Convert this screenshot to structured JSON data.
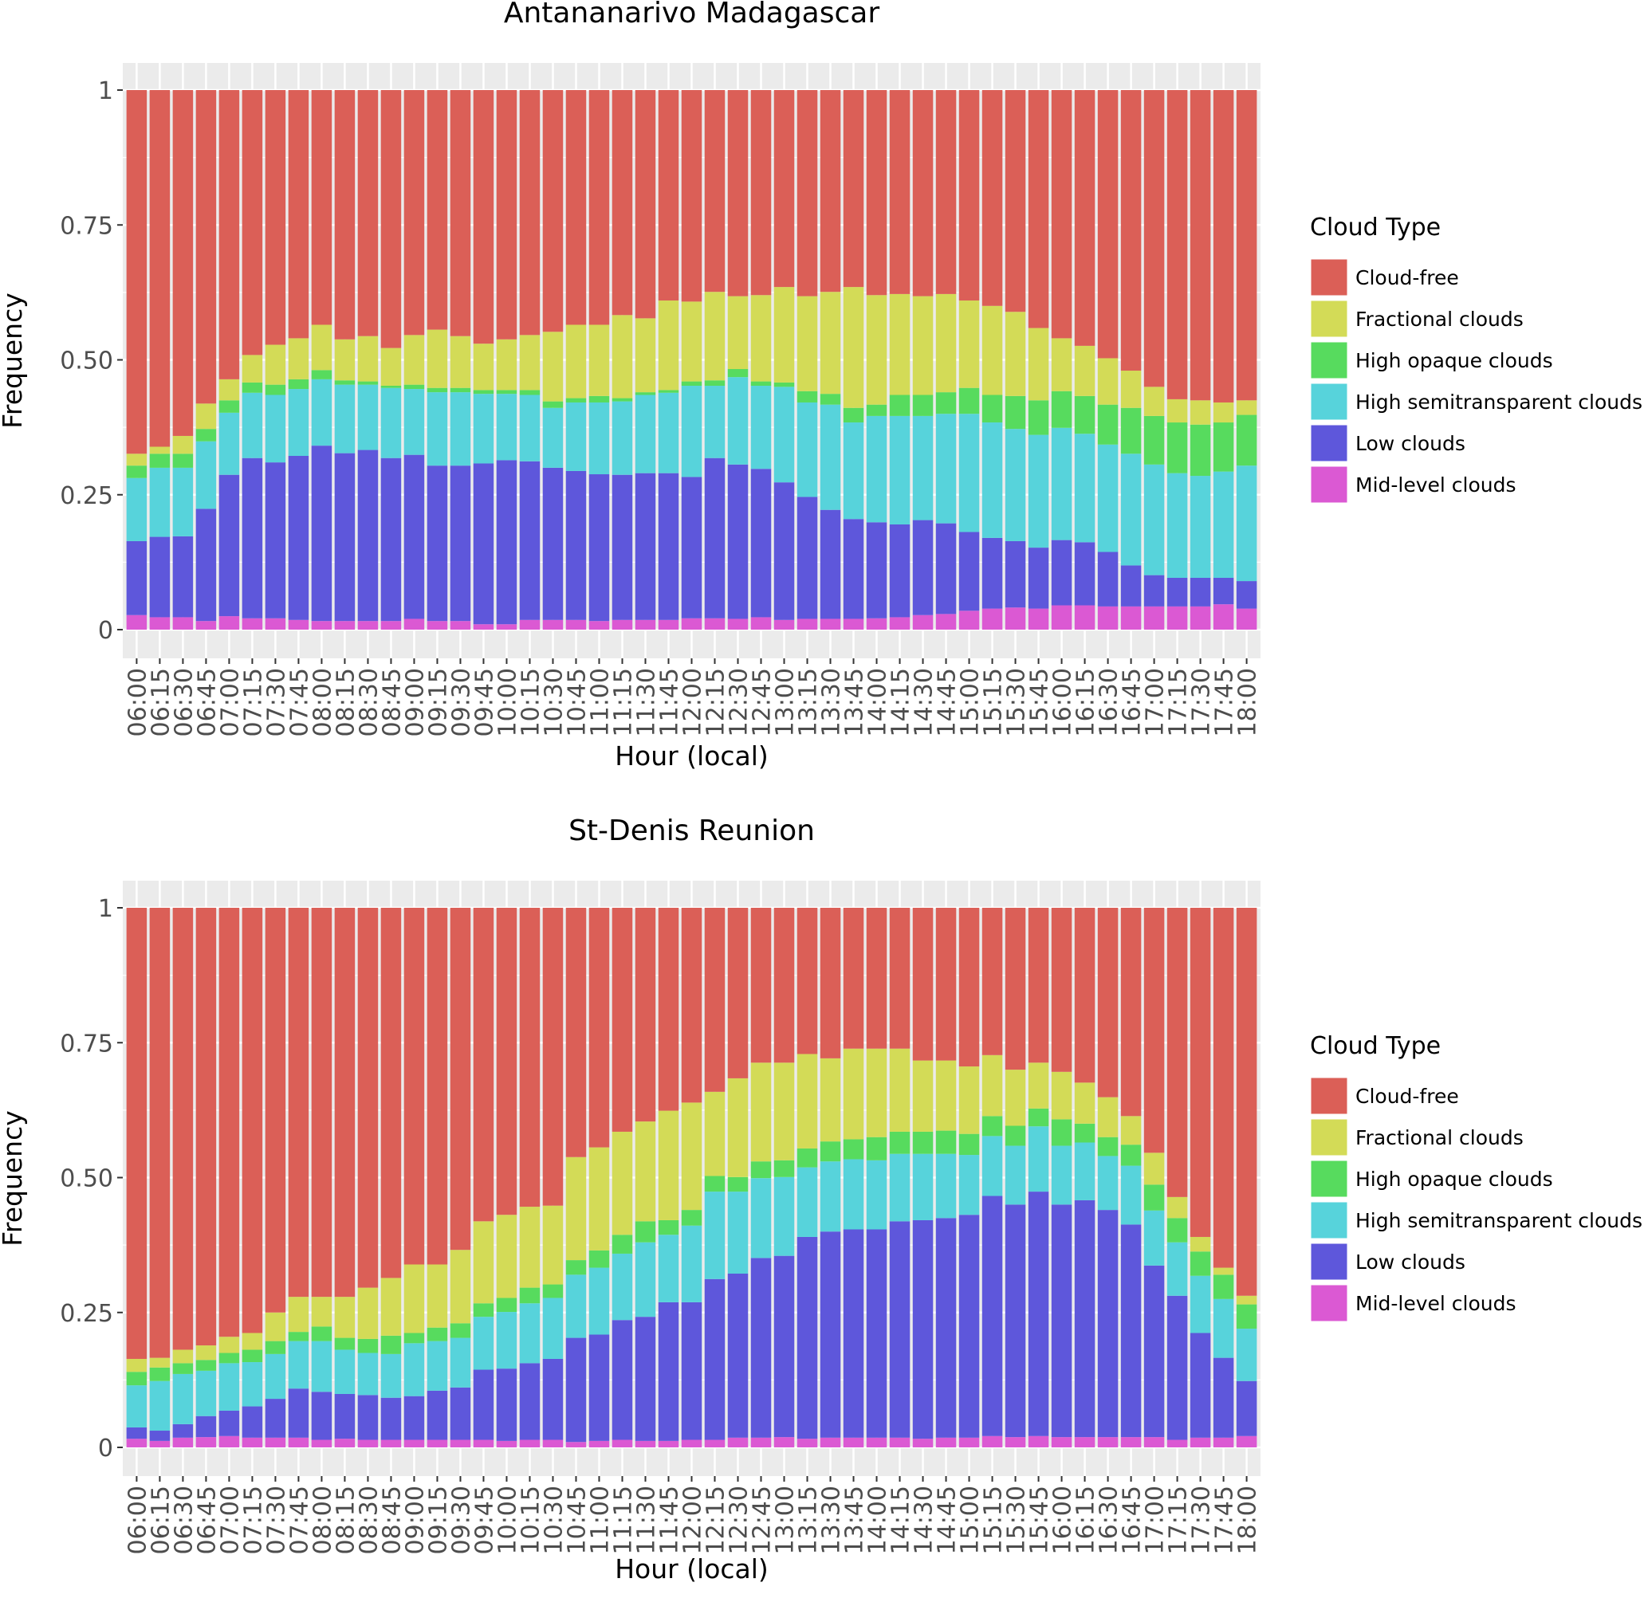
{
  "chart_data": [
    {
      "type": "bar",
      "stacked": true,
      "title": "Antananarivo Madagascar",
      "xlabel": "Hour (local)",
      "ylabel": "Frequency",
      "ylim": [
        0,
        1
      ],
      "yticks": [
        "0",
        "0.25",
        "0.50",
        "0.75",
        "1"
      ],
      "grid": true,
      "legend_position": "right",
      "legend_title": "Cloud Type",
      "categories": [
        "06:00",
        "06:15",
        "06:30",
        "06:45",
        "07:00",
        "07:15",
        "07:30",
        "07:45",
        "08:00",
        "08:15",
        "08:30",
        "08:45",
        "09:00",
        "09:15",
        "09:30",
        "09:45",
        "10:00",
        "10:15",
        "10:30",
        "10:45",
        "11:00",
        "11:15",
        "11:30",
        "11:45",
        "12:00",
        "12:15",
        "12:30",
        "12:45",
        "13:00",
        "13:15",
        "13:30",
        "13:45",
        "14:00",
        "14:15",
        "14:30",
        "14:45",
        "15:00",
        "15:15",
        "15:30",
        "15:45",
        "16:00",
        "16:15",
        "16:30",
        "16:45",
        "17:00",
        "17:15",
        "17:30",
        "17:45",
        "18:00"
      ],
      "series": [
        {
          "name": "Mid-level clouds",
          "color": "#db59d3",
          "values": [
            0.027,
            0.023,
            0.023,
            0.016,
            0.025,
            0.021,
            0.021,
            0.018,
            0.016,
            0.016,
            0.016,
            0.016,
            0.02,
            0.016,
            0.016,
            0.01,
            0.01,
            0.018,
            0.018,
            0.018,
            0.016,
            0.018,
            0.018,
            0.018,
            0.021,
            0.021,
            0.02,
            0.023,
            0.018,
            0.02,
            0.02,
            0.02,
            0.021,
            0.023,
            0.027,
            0.029,
            0.035,
            0.039,
            0.041,
            0.039,
            0.045,
            0.045,
            0.043,
            0.043,
            0.043,
            0.043,
            0.043,
            0.047,
            0.039
          ]
        },
        {
          "name": "Low clouds",
          "color": "#5e57db",
          "values": [
            0.137,
            0.149,
            0.15,
            0.208,
            0.262,
            0.297,
            0.289,
            0.304,
            0.325,
            0.311,
            0.317,
            0.302,
            0.304,
            0.288,
            0.288,
            0.298,
            0.304,
            0.294,
            0.282,
            0.276,
            0.272,
            0.269,
            0.272,
            0.272,
            0.262,
            0.297,
            0.286,
            0.275,
            0.255,
            0.226,
            0.202,
            0.185,
            0.178,
            0.172,
            0.176,
            0.168,
            0.146,
            0.131,
            0.123,
            0.113,
            0.121,
            0.117,
            0.101,
            0.076,
            0.058,
            0.053,
            0.053,
            0.049,
            0.051
          ]
        },
        {
          "name": "High semitransparent clouds",
          "color": "#57d3db",
          "values": [
            0.117,
            0.128,
            0.127,
            0.125,
            0.115,
            0.121,
            0.125,
            0.124,
            0.123,
            0.127,
            0.121,
            0.13,
            0.122,
            0.136,
            0.136,
            0.129,
            0.123,
            0.123,
            0.111,
            0.127,
            0.133,
            0.136,
            0.145,
            0.149,
            0.169,
            0.134,
            0.162,
            0.154,
            0.177,
            0.175,
            0.195,
            0.179,
            0.197,
            0.201,
            0.193,
            0.203,
            0.219,
            0.214,
            0.208,
            0.209,
            0.208,
            0.201,
            0.199,
            0.207,
            0.205,
            0.194,
            0.189,
            0.197,
            0.214
          ]
        },
        {
          "name": "High opaque clouds",
          "color": "#57db5e",
          "values": [
            0.023,
            0.026,
            0.026,
            0.023,
            0.023,
            0.019,
            0.019,
            0.018,
            0.017,
            0.008,
            0.006,
            0.004,
            0.008,
            0.008,
            0.008,
            0.007,
            0.007,
            0.009,
            0.012,
            0.008,
            0.012,
            0.006,
            0.005,
            0.005,
            0.008,
            0.01,
            0.015,
            0.008,
            0.008,
            0.021,
            0.02,
            0.027,
            0.021,
            0.039,
            0.039,
            0.04,
            0.048,
            0.051,
            0.061,
            0.064,
            0.068,
            0.07,
            0.074,
            0.085,
            0.09,
            0.094,
            0.095,
            0.091,
            0.094
          ]
        },
        {
          "name": "Fractional clouds",
          "color": "#d3db57",
          "values": [
            0.022,
            0.013,
            0.033,
            0.047,
            0.039,
            0.051,
            0.074,
            0.076,
            0.084,
            0.076,
            0.084,
            0.07,
            0.092,
            0.108,
            0.096,
            0.086,
            0.094,
            0.102,
            0.129,
            0.136,
            0.132,
            0.154,
            0.137,
            0.166,
            0.148,
            0.164,
            0.135,
            0.16,
            0.177,
            0.176,
            0.189,
            0.224,
            0.203,
            0.187,
            0.183,
            0.182,
            0.162,
            0.165,
            0.156,
            0.134,
            0.098,
            0.093,
            0.086,
            0.069,
            0.054,
            0.043,
            0.045,
            0.037,
            0.027
          ]
        },
        {
          "name": "Cloud-free",
          "color": "#db5f57",
          "values": [
            0.674,
            0.661,
            0.641,
            0.581,
            0.536,
            0.491,
            0.472,
            0.46,
            0.435,
            0.462,
            0.456,
            0.478,
            0.454,
            0.444,
            0.456,
            0.47,
            0.462,
            0.454,
            0.448,
            0.435,
            0.435,
            0.417,
            0.423,
            0.39,
            0.392,
            0.374,
            0.382,
            0.38,
            0.365,
            0.382,
            0.374,
            0.365,
            0.38,
            0.378,
            0.382,
            0.378,
            0.39,
            0.4,
            0.411,
            0.441,
            0.46,
            0.474,
            0.497,
            0.52,
            0.55,
            0.573,
            0.575,
            0.579,
            0.575
          ]
        }
      ]
    },
    {
      "type": "bar",
      "stacked": true,
      "title": "St-Denis Reunion",
      "xlabel": "Hour (local)",
      "ylabel": "Frequency",
      "ylim": [
        0,
        1
      ],
      "yticks": [
        "0",
        "0.25",
        "0.50",
        "0.75",
        "1"
      ],
      "grid": true,
      "legend_position": "right",
      "legend_title": "Cloud Type",
      "categories": [
        "06:00",
        "06:15",
        "06:30",
        "06:45",
        "07:00",
        "07:15",
        "07:30",
        "07:45",
        "08:00",
        "08:15",
        "08:30",
        "08:45",
        "09:00",
        "09:15",
        "09:30",
        "09:45",
        "10:00",
        "10:15",
        "10:30",
        "10:45",
        "11:00",
        "11:15",
        "11:30",
        "11:45",
        "12:00",
        "12:15",
        "12:30",
        "12:45",
        "13:00",
        "13:15",
        "13:30",
        "13:45",
        "14:00",
        "14:15",
        "14:30",
        "14:45",
        "15:00",
        "15:15",
        "15:30",
        "15:45",
        "16:00",
        "16:15",
        "16:30",
        "16:45",
        "17:00",
        "17:15",
        "17:30",
        "17:45",
        "18:00"
      ],
      "series": [
        {
          "name": "Mid-level clouds",
          "color": "#db59d3",
          "values": [
            0.016,
            0.012,
            0.018,
            0.019,
            0.021,
            0.018,
            0.018,
            0.018,
            0.014,
            0.016,
            0.014,
            0.014,
            0.014,
            0.014,
            0.014,
            0.014,
            0.012,
            0.014,
            0.014,
            0.01,
            0.012,
            0.014,
            0.012,
            0.012,
            0.014,
            0.014,
            0.018,
            0.018,
            0.019,
            0.016,
            0.018,
            0.018,
            0.018,
            0.018,
            0.016,
            0.018,
            0.018,
            0.021,
            0.019,
            0.021,
            0.019,
            0.019,
            0.019,
            0.019,
            0.019,
            0.014,
            0.018,
            0.018,
            0.021
          ]
        },
        {
          "name": "Low clouds",
          "color": "#5e57db",
          "values": [
            0.021,
            0.019,
            0.025,
            0.039,
            0.047,
            0.058,
            0.072,
            0.091,
            0.089,
            0.083,
            0.083,
            0.078,
            0.081,
            0.091,
            0.097,
            0.13,
            0.134,
            0.142,
            0.15,
            0.193,
            0.197,
            0.222,
            0.23,
            0.257,
            0.255,
            0.298,
            0.304,
            0.333,
            0.336,
            0.374,
            0.382,
            0.386,
            0.386,
            0.401,
            0.405,
            0.407,
            0.413,
            0.445,
            0.431,
            0.453,
            0.431,
            0.439,
            0.421,
            0.394,
            0.318,
            0.267,
            0.194,
            0.148,
            0.102
          ]
        },
        {
          "name": "High semitransparent clouds",
          "color": "#57d3db",
          "values": [
            0.078,
            0.092,
            0.093,
            0.084,
            0.088,
            0.082,
            0.083,
            0.088,
            0.094,
            0.082,
            0.078,
            0.081,
            0.098,
            0.092,
            0.092,
            0.098,
            0.105,
            0.111,
            0.113,
            0.117,
            0.124,
            0.123,
            0.138,
            0.125,
            0.142,
            0.162,
            0.152,
            0.148,
            0.146,
            0.129,
            0.13,
            0.13,
            0.128,
            0.125,
            0.123,
            0.119,
            0.111,
            0.111,
            0.109,
            0.121,
            0.109,
            0.107,
            0.1,
            0.109,
            0.102,
            0.099,
            0.106,
            0.109,
            0.097
          ]
        },
        {
          "name": "High opaque clouds",
          "color": "#57db5e",
          "values": [
            0.025,
            0.025,
            0.02,
            0.02,
            0.019,
            0.023,
            0.024,
            0.017,
            0.027,
            0.022,
            0.026,
            0.034,
            0.019,
            0.025,
            0.027,
            0.025,
            0.026,
            0.029,
            0.025,
            0.027,
            0.032,
            0.035,
            0.039,
            0.027,
            0.029,
            0.029,
            0.027,
            0.031,
            0.031,
            0.035,
            0.037,
            0.037,
            0.043,
            0.041,
            0.041,
            0.043,
            0.039,
            0.037,
            0.037,
            0.033,
            0.049,
            0.035,
            0.035,
            0.039,
            0.048,
            0.045,
            0.045,
            0.045,
            0.045
          ]
        },
        {
          "name": "Fractional clouds",
          "color": "#d3db57",
          "values": [
            0.024,
            0.018,
            0.025,
            0.027,
            0.03,
            0.031,
            0.053,
            0.065,
            0.055,
            0.076,
            0.095,
            0.107,
            0.127,
            0.117,
            0.136,
            0.152,
            0.154,
            0.15,
            0.146,
            0.191,
            0.191,
            0.191,
            0.185,
            0.203,
            0.199,
            0.156,
            0.183,
            0.183,
            0.181,
            0.175,
            0.154,
            0.168,
            0.164,
            0.154,
            0.132,
            0.13,
            0.125,
            0.113,
            0.104,
            0.085,
            0.088,
            0.076,
            0.074,
            0.053,
            0.059,
            0.039,
            0.027,
            0.013,
            0.016
          ]
        },
        {
          "name": "Cloud-free",
          "color": "#db5f57",
          "values": [
            0.836,
            0.834,
            0.819,
            0.811,
            0.795,
            0.788,
            0.75,
            0.721,
            0.721,
            0.721,
            0.704,
            0.686,
            0.661,
            0.661,
            0.634,
            0.581,
            0.569,
            0.554,
            0.552,
            0.462,
            0.444,
            0.415,
            0.396,
            0.376,
            0.361,
            0.341,
            0.316,
            0.287,
            0.287,
            0.271,
            0.279,
            0.261,
            0.261,
            0.261,
            0.283,
            0.283,
            0.294,
            0.273,
            0.3,
            0.287,
            0.304,
            0.324,
            0.351,
            0.386,
            0.454,
            0.536,
            0.61,
            0.667,
            0.719
          ]
        }
      ]
    }
  ],
  "legend": {
    "title": "Cloud Type",
    "items": [
      {
        "label": "Cloud-free",
        "color": "#db5f57"
      },
      {
        "label": "Fractional clouds",
        "color": "#d3db57"
      },
      {
        "label": "High opaque clouds",
        "color": "#57db5e"
      },
      {
        "label": "High semitransparent clouds",
        "color": "#57d3db"
      },
      {
        "label": "Low clouds",
        "color": "#5e57db"
      },
      {
        "label": "Mid-level clouds",
        "color": "#db59d3"
      }
    ]
  }
}
